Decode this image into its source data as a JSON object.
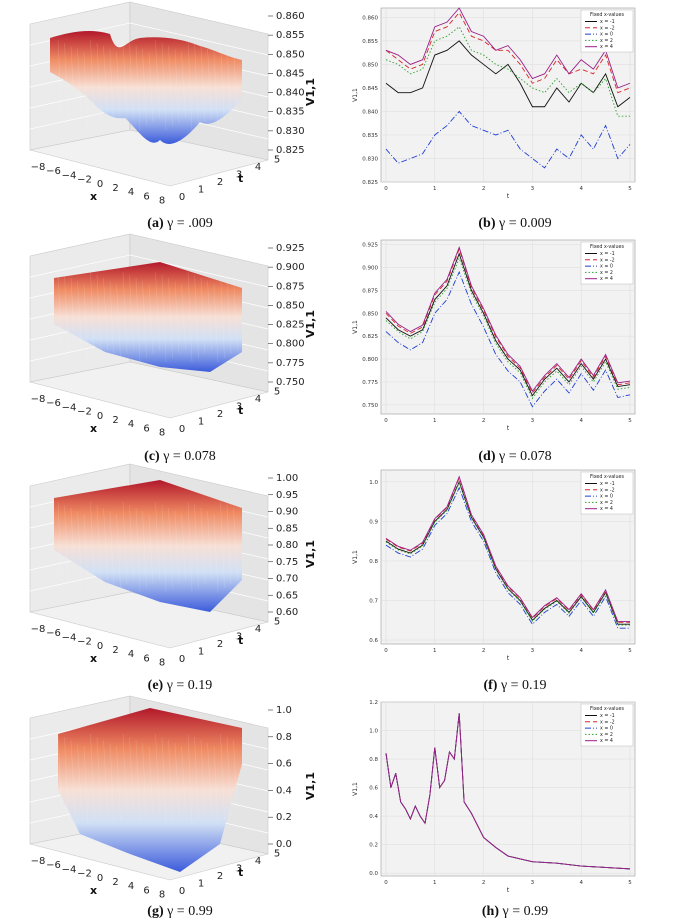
{
  "chart_data": [
    {
      "id": "a",
      "type": "surface3d",
      "caption_label": "(a)",
      "caption_text": "γ = .009",
      "zlabel": "V1,1",
      "xlabel": "x",
      "ylabel": "t",
      "z_ticks": [
        "0.860",
        "0.855",
        "0.850",
        "0.845",
        "0.840",
        "0.835",
        "0.830",
        "0.825"
      ],
      "x_ticks": [
        "−8",
        "−6",
        "−4",
        "−2",
        "0",
        "2",
        "4",
        "6",
        "8"
      ],
      "t_ticks": [
        "0",
        "1",
        "2",
        "3",
        "4",
        "5"
      ]
    },
    {
      "id": "b",
      "type": "line",
      "caption_label": "(b)",
      "caption_text": "γ = 0.009",
      "xlabel": "t",
      "ylabel": "V1,1",
      "xlim": [
        0,
        5
      ],
      "ylim": [
        0.825,
        0.862
      ],
      "y_ticks": [
        "0.860",
        "0.855",
        "0.850",
        "0.845",
        "0.840",
        "0.835",
        "0.830",
        "0.825"
      ],
      "x_ticks": [
        "0",
        "1",
        "2",
        "3",
        "4",
        "5"
      ],
      "legend_title": "Fixed x-values",
      "legend": [
        "x = -1",
        "x = -2",
        "x = 0",
        "x = 2",
        "x = 4"
      ],
      "t": [
        0,
        0.25,
        0.5,
        0.75,
        1,
        1.25,
        1.5,
        1.75,
        2,
        2.25,
        2.5,
        2.75,
        3,
        3.25,
        3.5,
        3.75,
        4,
        4.25,
        4.5,
        4.75,
        5
      ],
      "series": [
        {
          "name": "x = -1",
          "values": [
            0.846,
            0.844,
            0.844,
            0.845,
            0.852,
            0.853,
            0.855,
            0.852,
            0.85,
            0.848,
            0.85,
            0.846,
            0.841,
            0.841,
            0.845,
            0.842,
            0.846,
            0.844,
            0.848,
            0.841,
            0.843
          ]
        },
        {
          "name": "x = -2",
          "values": [
            0.853,
            0.851,
            0.849,
            0.85,
            0.857,
            0.858,
            0.861,
            0.856,
            0.855,
            0.853,
            0.853,
            0.85,
            0.846,
            0.847,
            0.851,
            0.848,
            0.849,
            0.848,
            0.852,
            0.844,
            0.845
          ]
        },
        {
          "name": "x = 0",
          "values": [
            0.832,
            0.829,
            0.83,
            0.831,
            0.835,
            0.837,
            0.84,
            0.837,
            0.836,
            0.835,
            0.836,
            0.832,
            0.83,
            0.828,
            0.832,
            0.83,
            0.835,
            0.832,
            0.837,
            0.83,
            0.833
          ]
        },
        {
          "name": "x = 2",
          "values": [
            0.851,
            0.85,
            0.848,
            0.849,
            0.855,
            0.856,
            0.858,
            0.853,
            0.852,
            0.85,
            0.849,
            0.847,
            0.845,
            0.844,
            0.847,
            0.844,
            0.846,
            0.844,
            0.847,
            0.839,
            0.839
          ]
        },
        {
          "name": "x = 4",
          "values": [
            0.853,
            0.852,
            0.85,
            0.851,
            0.858,
            0.859,
            0.862,
            0.857,
            0.856,
            0.853,
            0.854,
            0.851,
            0.847,
            0.848,
            0.852,
            0.848,
            0.851,
            0.849,
            0.853,
            0.845,
            0.846
          ]
        }
      ]
    },
    {
      "id": "c",
      "type": "surface3d",
      "caption_label": "(c)",
      "caption_text": "γ = 0.078",
      "zlabel": "V1,1",
      "xlabel": "x",
      "ylabel": "t",
      "z_ticks": [
        "0.925",
        "0.900",
        "0.875",
        "0.850",
        "0.825",
        "0.800",
        "0.775",
        "0.750"
      ],
      "x_ticks": [
        "−8",
        "−6",
        "−4",
        "−2",
        "0",
        "2",
        "4",
        "6",
        "8"
      ],
      "t_ticks": [
        "0",
        "1",
        "2",
        "3",
        "4",
        "5"
      ]
    },
    {
      "id": "d",
      "type": "line",
      "caption_label": "(d)",
      "caption_text": "γ = 0.078",
      "xlabel": "t",
      "ylabel": "V1,1",
      "xlim": [
        0,
        5
      ],
      "ylim": [
        0.74,
        0.93
      ],
      "y_ticks": [
        "0.925",
        "0.900",
        "0.875",
        "0.850",
        "0.825",
        "0.800",
        "0.775",
        "0.750"
      ],
      "x_ticks": [
        "0",
        "1",
        "2",
        "3",
        "4",
        "5"
      ],
      "legend_title": "Fixed x-values",
      "legend": [
        "x = -1",
        "x = -2",
        "x = 0",
        "x = 2",
        "x = 4"
      ],
      "t": [
        0,
        0.25,
        0.5,
        0.75,
        1,
        1.25,
        1.5,
        1.75,
        2,
        2.25,
        2.5,
        2.75,
        3,
        3.25,
        3.5,
        3.75,
        4,
        4.25,
        4.5,
        4.75,
        5
      ],
      "series": [
        {
          "name": "x = -1",
          "values": [
            0.845,
            0.832,
            0.825,
            0.832,
            0.865,
            0.88,
            0.915,
            0.875,
            0.85,
            0.82,
            0.8,
            0.788,
            0.76,
            0.778,
            0.79,
            0.775,
            0.795,
            0.778,
            0.8,
            0.77,
            0.772
          ]
        },
        {
          "name": "x = -2",
          "values": [
            0.85,
            0.836,
            0.828,
            0.835,
            0.87,
            0.885,
            0.92,
            0.878,
            0.853,
            0.824,
            0.803,
            0.79,
            0.763,
            0.78,
            0.793,
            0.778,
            0.798,
            0.78,
            0.803,
            0.772,
            0.774
          ]
        },
        {
          "name": "x = 0",
          "values": [
            0.83,
            0.818,
            0.81,
            0.818,
            0.85,
            0.865,
            0.895,
            0.86,
            0.835,
            0.805,
            0.787,
            0.775,
            0.748,
            0.765,
            0.778,
            0.763,
            0.784,
            0.766,
            0.788,
            0.758,
            0.761
          ]
        },
        {
          "name": "x = 2",
          "values": [
            0.842,
            0.83,
            0.822,
            0.83,
            0.862,
            0.877,
            0.91,
            0.872,
            0.847,
            0.817,
            0.797,
            0.785,
            0.757,
            0.775,
            0.787,
            0.772,
            0.792,
            0.775,
            0.797,
            0.767,
            0.769
          ]
        },
        {
          "name": "x = 4",
          "values": [
            0.852,
            0.838,
            0.83,
            0.837,
            0.872,
            0.887,
            0.922,
            0.88,
            0.855,
            0.826,
            0.805,
            0.792,
            0.765,
            0.782,
            0.795,
            0.78,
            0.8,
            0.782,
            0.805,
            0.774,
            0.776
          ]
        }
      ]
    },
    {
      "id": "e",
      "type": "surface3d",
      "caption_label": "(e)",
      "caption_text": "γ = 0.19",
      "zlabel": "V1,1",
      "xlabel": "x",
      "ylabel": "t",
      "z_ticks": [
        "1.00",
        "0.95",
        "0.90",
        "0.85",
        "0.80",
        "0.75",
        "0.70",
        "0.65",
        "0.60"
      ],
      "x_ticks": [
        "−8",
        "−6",
        "−4",
        "−2",
        "0",
        "2",
        "4",
        "6",
        "8"
      ],
      "t_ticks": [
        "0",
        "1",
        "2",
        "3",
        "4",
        "5"
      ]
    },
    {
      "id": "f",
      "type": "line",
      "caption_label": "(f)",
      "caption_text": "γ = 0.19",
      "xlabel": "t",
      "ylabel": "V1,1",
      "xlim": [
        0,
        5
      ],
      "ylim": [
        0.59,
        1.03
      ],
      "y_ticks": [
        "1.0",
        "0.9",
        "0.8",
        "0.7",
        "0.6"
      ],
      "x_ticks": [
        "0",
        "1",
        "2",
        "3",
        "4",
        "5"
      ],
      "legend_title": "Fixed x-values",
      "legend": [
        "x = -1",
        "x = -2",
        "x = 0",
        "x = 2",
        "x = 4"
      ],
      "t": [
        0,
        0.25,
        0.5,
        0.75,
        1,
        1.25,
        1.5,
        1.75,
        2,
        2.25,
        2.5,
        2.75,
        3,
        3.25,
        3.5,
        3.75,
        4,
        4.25,
        4.5,
        4.75,
        5
      ],
      "series": [
        {
          "name": "x = -1",
          "values": [
            0.85,
            0.83,
            0.82,
            0.84,
            0.9,
            0.93,
            1.0,
            0.91,
            0.86,
            0.78,
            0.73,
            0.7,
            0.65,
            0.68,
            0.7,
            0.67,
            0.71,
            0.67,
            0.72,
            0.64,
            0.64
          ]
        },
        {
          "name": "x = -2",
          "values": [
            0.855,
            0.835,
            0.825,
            0.845,
            0.905,
            0.935,
            1.01,
            0.915,
            0.865,
            0.785,
            0.735,
            0.705,
            0.655,
            0.685,
            0.705,
            0.675,
            0.715,
            0.675,
            0.725,
            0.645,
            0.645
          ]
        },
        {
          "name": "x = 0",
          "values": [
            0.84,
            0.82,
            0.81,
            0.83,
            0.89,
            0.92,
            0.985,
            0.9,
            0.85,
            0.77,
            0.72,
            0.69,
            0.64,
            0.67,
            0.69,
            0.66,
            0.7,
            0.66,
            0.71,
            0.63,
            0.63
          ]
        },
        {
          "name": "x = 2",
          "values": [
            0.848,
            0.828,
            0.818,
            0.838,
            0.898,
            0.928,
            0.998,
            0.908,
            0.858,
            0.778,
            0.728,
            0.698,
            0.648,
            0.678,
            0.698,
            0.668,
            0.708,
            0.668,
            0.718,
            0.638,
            0.638
          ]
        },
        {
          "name": "x = 4",
          "values": [
            0.857,
            0.837,
            0.827,
            0.847,
            0.907,
            0.937,
            1.013,
            0.917,
            0.867,
            0.787,
            0.737,
            0.707,
            0.657,
            0.687,
            0.707,
            0.677,
            0.717,
            0.677,
            0.727,
            0.647,
            0.647
          ]
        }
      ]
    },
    {
      "id": "g",
      "type": "surface3d",
      "caption_label": "(g)",
      "caption_text": "γ = 0.99",
      "zlabel": "V1,1",
      "xlabel": "x",
      "ylabel": "t",
      "z_ticks": [
        "1.0",
        "0.8",
        "0.6",
        "0.4",
        "0.2",
        "0.0"
      ],
      "x_ticks": [
        "−8",
        "−6",
        "−4",
        "−2",
        "0",
        "2",
        "4",
        "6",
        "8"
      ],
      "t_ticks": [
        "0",
        "1",
        "2",
        "3",
        "4",
        "5"
      ]
    },
    {
      "id": "h",
      "type": "line",
      "caption_label": "(h)",
      "caption_text": "γ = 0.99",
      "xlabel": "t",
      "ylabel": "V1,1",
      "xlim": [
        0,
        5
      ],
      "ylim": [
        -0.02,
        1.2
      ],
      "y_ticks": [
        "1.2",
        "1.0",
        "0.8",
        "0.6",
        "0.4",
        "0.2",
        "0.0"
      ],
      "x_ticks": [
        "0",
        "1",
        "2",
        "3",
        "4",
        "5"
      ],
      "legend_title": "Fixed x-values",
      "legend": [
        "x = -1",
        "x = -2",
        "x = 0",
        "x = 2",
        "x = 4"
      ],
      "t": [
        0,
        0.1,
        0.2,
        0.3,
        0.4,
        0.5,
        0.6,
        0.7,
        0.8,
        0.9,
        1.0,
        1.1,
        1.2,
        1.3,
        1.4,
        1.5,
        1.6,
        1.75,
        2.0,
        2.25,
        2.5,
        2.75,
        3.0,
        3.5,
        4.0,
        4.5,
        5.0
      ],
      "series": [
        {
          "name": "x = -1",
          "values": [
            0.84,
            0.6,
            0.7,
            0.5,
            0.45,
            0.38,
            0.47,
            0.4,
            0.35,
            0.55,
            0.88,
            0.6,
            0.65,
            0.85,
            0.8,
            1.12,
            0.5,
            0.42,
            0.25,
            0.18,
            0.12,
            0.1,
            0.08,
            0.07,
            0.05,
            0.04,
            0.03
          ]
        },
        {
          "name": "x = -2",
          "values": [
            0.84,
            0.6,
            0.7,
            0.5,
            0.45,
            0.38,
            0.47,
            0.4,
            0.35,
            0.55,
            0.88,
            0.6,
            0.65,
            0.85,
            0.8,
            1.12,
            0.5,
            0.42,
            0.25,
            0.18,
            0.12,
            0.1,
            0.08,
            0.07,
            0.05,
            0.04,
            0.03
          ]
        },
        {
          "name": "x = 0",
          "values": [
            0.84,
            0.6,
            0.7,
            0.5,
            0.45,
            0.38,
            0.47,
            0.4,
            0.35,
            0.55,
            0.88,
            0.6,
            0.65,
            0.85,
            0.8,
            1.12,
            0.5,
            0.42,
            0.25,
            0.18,
            0.12,
            0.1,
            0.08,
            0.07,
            0.05,
            0.04,
            0.03
          ]
        },
        {
          "name": "x = 2",
          "values": [
            0.84,
            0.6,
            0.7,
            0.5,
            0.45,
            0.38,
            0.47,
            0.4,
            0.35,
            0.55,
            0.88,
            0.6,
            0.65,
            0.85,
            0.8,
            1.12,
            0.5,
            0.42,
            0.25,
            0.18,
            0.12,
            0.1,
            0.08,
            0.07,
            0.05,
            0.04,
            0.03
          ]
        },
        {
          "name": "x = 4",
          "values": [
            0.84,
            0.6,
            0.7,
            0.5,
            0.45,
            0.38,
            0.47,
            0.4,
            0.35,
            0.55,
            0.88,
            0.6,
            0.65,
            0.85,
            0.8,
            1.12,
            0.5,
            0.42,
            0.25,
            0.18,
            0.12,
            0.1,
            0.08,
            0.07,
            0.05,
            0.04,
            0.03
          ]
        }
      ]
    }
  ],
  "series_colors": [
    "#111111",
    "#d62728",
    "#1f3fd6",
    "#2ca02c",
    "#9b1f8a"
  ],
  "series_dashes": [
    "",
    "5,3",
    "6,2,1,2",
    "1.5,2",
    ""
  ]
}
